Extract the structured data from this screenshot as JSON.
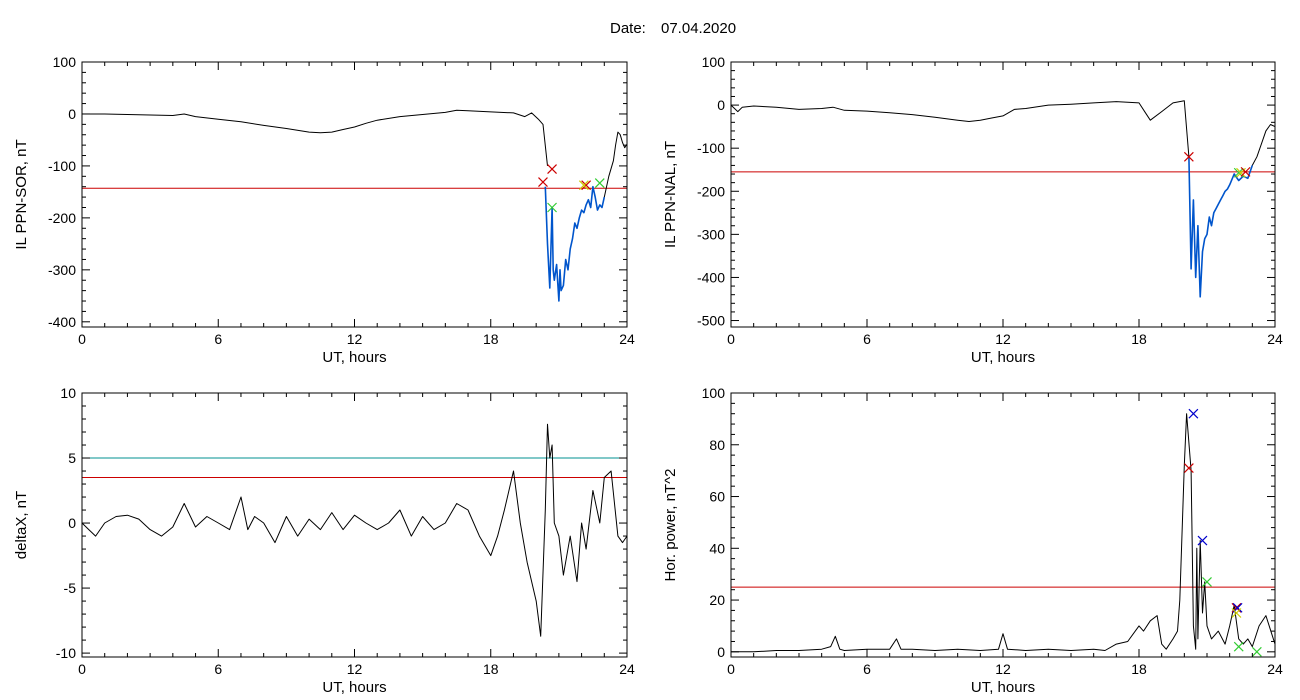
{
  "header": {
    "date_label": "Date:",
    "date_value": "07.04.2020"
  },
  "colors": {
    "signal": "#000000",
    "threshold_red": "#cc0000",
    "threshold_teal": "#009090",
    "substorm": "#0055cc",
    "mark_red": "#cc0000",
    "mark_green": "#33cc33",
    "mark_blue": "#0000cc",
    "mark_yellow": "#cccc00"
  },
  "chart_data": [
    {
      "type": "line",
      "xlabel": "UT, hours",
      "ylabel": "IL PPN-SOR, nT",
      "xlim": [
        0,
        24
      ],
      "ylim": [
        -410,
        100
      ],
      "xticks": [
        0,
        6,
        12,
        18,
        24
      ],
      "yticks": [
        -400,
        -300,
        -200,
        -100,
        0,
        100
      ],
      "threshold_lines": [
        {
          "value": -143,
          "color": "#cc0000"
        }
      ],
      "series": [
        {
          "role": "signal",
          "color": "#000000",
          "x": [
            0,
            1,
            2,
            3,
            4,
            4.5,
            5,
            6,
            7,
            8,
            9,
            10,
            10.5,
            11,
            11.5,
            12,
            12.5,
            13,
            14,
            15,
            16,
            16.5,
            17,
            18,
            19,
            19.5,
            19.8,
            20.1,
            20.3,
            20.5
          ],
          "y": [
            0,
            0,
            -1,
            -2,
            -3,
            0,
            -5,
            -10,
            -15,
            -22,
            -28,
            -35,
            -36,
            -35,
            -30,
            -25,
            -18,
            -12,
            -5,
            -1,
            3,
            7,
            6,
            4,
            2,
            -5,
            2,
            -10,
            -20,
            -100
          ]
        },
        {
          "role": "substorm",
          "color": "#0055cc",
          "x": [
            20.4,
            20.5,
            20.6,
            20.7,
            20.75,
            20.8,
            20.9,
            21.0,
            21.05,
            21.1,
            21.2,
            21.3,
            21.4,
            21.5,
            21.6,
            21.7,
            21.8,
            21.9,
            22.0,
            22.1,
            22.2,
            22.3,
            22.4,
            22.5,
            22.6,
            22.7,
            22.8,
            22.9,
            23.0
          ],
          "y": [
            -140,
            -250,
            -335,
            -180,
            -300,
            -320,
            -290,
            -360,
            -300,
            -340,
            -330,
            -280,
            -300,
            -260,
            -240,
            -210,
            -220,
            -200,
            -185,
            -190,
            -175,
            -165,
            -180,
            -140,
            -160,
            -185,
            -175,
            -180,
            -160
          ]
        },
        {
          "role": "signal",
          "color": "#000000",
          "x": [
            23.0,
            23.2,
            23.4,
            23.5,
            23.6,
            23.7,
            23.8,
            23.9,
            24.0
          ],
          "y": [
            -160,
            -120,
            -90,
            -60,
            -35,
            -40,
            -55,
            -65,
            -58
          ]
        }
      ],
      "markers": [
        {
          "x": 20.3,
          "y": -131,
          "color": "#cc0000"
        },
        {
          "x": 20.7,
          "y": -106,
          "color": "#cc0000"
        },
        {
          "x": 20.7,
          "y": -180,
          "color": "#33cc33"
        },
        {
          "x": 22.2,
          "y": -137,
          "color": "#cc0000"
        },
        {
          "x": 22.1,
          "y": -137,
          "color": "#cccc00"
        },
        {
          "x": 22.8,
          "y": -133,
          "color": "#33cc33"
        }
      ]
    },
    {
      "type": "line",
      "xlabel": "UT, hours",
      "ylabel": "IL PPN-NAL, nT",
      "xlim": [
        0,
        24
      ],
      "ylim": [
        -515,
        100
      ],
      "xticks": [
        0,
        6,
        12,
        18,
        24
      ],
      "yticks": [
        -500,
        -400,
        -300,
        -200,
        -100,
        0,
        100
      ],
      "threshold_lines": [
        {
          "value": -155,
          "color": "#cc0000"
        }
      ],
      "series": [
        {
          "role": "signal",
          "color": "#000000",
          "x": [
            0,
            0.3,
            0.5,
            1,
            2,
            3,
            4,
            4.5,
            5,
            6,
            7,
            8,
            9,
            10,
            10.5,
            11,
            11.5,
            12,
            12.5,
            13,
            14,
            15,
            16,
            17,
            18,
            18.5,
            19,
            19.5,
            20.0,
            20.2
          ],
          "y": [
            0,
            -15,
            -5,
            -2,
            -5,
            -10,
            -8,
            -5,
            -12,
            -14,
            -18,
            -22,
            -28,
            -35,
            -38,
            -35,
            -30,
            -25,
            -10,
            -8,
            0,
            2,
            5,
            8,
            5,
            -35,
            -15,
            5,
            10,
            -120
          ]
        },
        {
          "role": "substorm",
          "color": "#0055cc",
          "x": [
            20.2,
            20.3,
            20.4,
            20.5,
            20.6,
            20.7,
            20.8,
            20.9,
            21.0,
            21.1,
            21.2,
            21.3,
            21.4,
            21.5,
            21.6,
            21.7,
            21.8,
            21.9,
            22.0,
            22.2,
            22.4,
            22.6,
            22.8,
            23.0
          ],
          "y": [
            -120,
            -380,
            -220,
            -400,
            -280,
            -445,
            -340,
            -310,
            -300,
            -260,
            -280,
            -250,
            -240,
            -230,
            -220,
            -210,
            -200,
            -195,
            -185,
            -160,
            -175,
            -165,
            -170,
            -140
          ]
        },
        {
          "role": "signal",
          "color": "#000000",
          "x": [
            23.0,
            23.2,
            23.4,
            23.6,
            23.8,
            24.0
          ],
          "y": [
            -140,
            -120,
            -90,
            -60,
            -45,
            -50
          ]
        }
      ],
      "markers": [
        {
          "x": 20.2,
          "y": -120,
          "color": "#cc0000"
        },
        {
          "x": 22.4,
          "y": -157,
          "color": "#33cc33"
        },
        {
          "x": 22.5,
          "y": -157,
          "color": "#cccc00"
        },
        {
          "x": 22.7,
          "y": -155,
          "color": "#cc0000"
        }
      ]
    },
    {
      "type": "line",
      "xlabel": "UT, hours",
      "ylabel": "deltaX, nT",
      "xlim": [
        0,
        24
      ],
      "ylim": [
        -10.3,
        10
      ],
      "xticks": [
        0,
        6,
        12,
        18,
        24
      ],
      "yticks": [
        -10,
        -5,
        0,
        5,
        10
      ],
      "threshold_lines": [
        {
          "value": 5,
          "color": "#009090"
        },
        {
          "value": 3.5,
          "color": "#cc0000"
        }
      ],
      "series": [
        {
          "role": "signal",
          "color": "#000000",
          "x": [
            0,
            0.3,
            0.6,
            1,
            1.5,
            2,
            2.5,
            3,
            3.5,
            4,
            4.5,
            5,
            5.5,
            6,
            6.5,
            7,
            7.3,
            7.6,
            8,
            8.5,
            9,
            9.5,
            10,
            10.5,
            11,
            11.5,
            12,
            12.5,
            13,
            13.5,
            14,
            14.5,
            15,
            15.5,
            16,
            16.5,
            17,
            17.5,
            18,
            18.3,
            18.6,
            19,
            19.3,
            19.6,
            20,
            20.2,
            20.4,
            20.5,
            20.6,
            20.7,
            20.8,
            21.0,
            21.2,
            21.5,
            21.8,
            22.0,
            22.2,
            22.5,
            22.8,
            23.0,
            23.3,
            23.6,
            23.8,
            24.0
          ],
          "y": [
            0,
            -0.5,
            -1,
            0,
            0.5,
            0.6,
            0.3,
            -0.5,
            -1,
            -0.3,
            1.5,
            -0.3,
            0.5,
            0,
            -0.5,
            2,
            -0.5,
            0.5,
            0,
            -1.5,
            0.5,
            -1,
            0.3,
            -0.5,
            0.8,
            -0.5,
            0.6,
            0,
            -0.5,
            0,
            1,
            -1,
            0.5,
            -0.5,
            0,
            1.5,
            1,
            -1,
            -2.5,
            -1,
            1,
            4,
            0,
            -3,
            -6,
            -8.7,
            1,
            7.6,
            5,
            6,
            0,
            -1,
            -4,
            -1,
            -4.5,
            0,
            -2,
            2.5,
            0,
            3.5,
            4,
            -1,
            -1.5,
            -1
          ]
        }
      ],
      "markers": []
    },
    {
      "type": "line",
      "xlabel": "UT, hours",
      "ylabel": "Hor. power, nT^2",
      "xlim": [
        0,
        24
      ],
      "ylim": [
        -2,
        100
      ],
      "xticks": [
        0,
        6,
        12,
        18,
        24
      ],
      "yticks": [
        0,
        20,
        40,
        60,
        80,
        100
      ],
      "threshold_lines": [
        {
          "value": 25,
          "color": "#cc0000"
        }
      ],
      "series": [
        {
          "role": "signal",
          "color": "#000000",
          "x": [
            0,
            1,
            2,
            3,
            4,
            4.4,
            4.6,
            4.8,
            5,
            6,
            7,
            7.3,
            7.5,
            8,
            9,
            10,
            11,
            11.8,
            12,
            12.2,
            13,
            14,
            15,
            16,
            16.5,
            17,
            17.5,
            18,
            18.2,
            18.5,
            18.8,
            19,
            19.2,
            19.5,
            19.7,
            19.8,
            20.0,
            20.1,
            20.3,
            20.4,
            20.5,
            20.55,
            20.6,
            20.7,
            20.8,
            20.9,
            21.0,
            21.2,
            21.5,
            21.8,
            22.0,
            22.2,
            22.4,
            22.6,
            22.8,
            23.0,
            23.3,
            23.6,
            24.0
          ],
          "y": [
            0,
            0,
            0.5,
            0.5,
            1,
            2,
            6,
            1,
            0.5,
            1,
            1,
            5,
            1,
            1,
            0.5,
            1,
            0.5,
            1,
            7,
            1,
            0.5,
            1,
            0.5,
            1,
            0.5,
            3,
            4,
            10,
            8,
            12,
            14,
            3,
            1,
            5,
            8,
            20,
            72,
            92,
            70,
            10,
            1,
            40,
            5,
            43,
            15,
            27,
            10,
            5,
            8,
            3,
            10,
            18,
            5,
            3,
            5,
            2,
            10,
            14,
            3
          ]
        }
      ],
      "markers": [
        {
          "x": 20.2,
          "y": 71,
          "color": "#cc0000"
        },
        {
          "x": 20.4,
          "y": 92,
          "color": "#0000cc"
        },
        {
          "x": 20.8,
          "y": 43,
          "color": "#0000cc"
        },
        {
          "x": 21.0,
          "y": 27,
          "color": "#33cc33"
        },
        {
          "x": 22.3,
          "y": 17,
          "color": "#cc0000"
        },
        {
          "x": 22.35,
          "y": 17,
          "color": "#0000cc"
        },
        {
          "x": 22.3,
          "y": 15,
          "color": "#cccc00"
        },
        {
          "x": 22.4,
          "y": 2,
          "color": "#33cc33"
        },
        {
          "x": 23.2,
          "y": 0,
          "color": "#33cc33"
        }
      ]
    }
  ]
}
